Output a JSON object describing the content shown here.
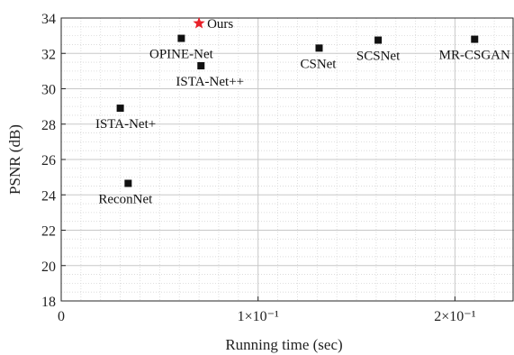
{
  "chart_data": {
    "type": "scatter",
    "xlabel": "Running time (sec)",
    "ylabel": "PSNR (dB)",
    "xlim": [
      0,
      0.23
    ],
    "ylim": [
      18,
      34
    ],
    "x_scale": "linear",
    "grid": true,
    "minor_grid": true,
    "xticks": [
      {
        "value": 0,
        "label": "0"
      },
      {
        "value": 0.1,
        "label": "1×10⁻¹"
      },
      {
        "value": 0.2,
        "label": "2×10⁻¹"
      }
    ],
    "yticks": [
      18,
      20,
      22,
      24,
      26,
      28,
      30,
      32,
      34
    ],
    "points": [
      {
        "label": "Ours",
        "x": 0.07,
        "y": 33.7,
        "marker": "star",
        "color": "#e8212a"
      },
      {
        "label": "OPINE-Net",
        "x": 0.061,
        "y": 32.85,
        "marker": "square",
        "color": "#111111"
      },
      {
        "label": "ISTA-Net++",
        "x": 0.071,
        "y": 31.3,
        "marker": "square",
        "color": "#111111"
      },
      {
        "label": "CSNet",
        "x": 0.131,
        "y": 32.3,
        "marker": "square",
        "color": "#111111"
      },
      {
        "label": "SCSNet",
        "x": 0.161,
        "y": 32.75,
        "marker": "square",
        "color": "#111111"
      },
      {
        "label": "MR-CSGAN",
        "x": 0.21,
        "y": 32.8,
        "marker": "square",
        "color": "#111111"
      },
      {
        "label": "ISTA-Net+",
        "x": 0.03,
        "y": 28.9,
        "marker": "square",
        "color": "#111111"
      },
      {
        "label": "ReconNet",
        "x": 0.034,
        "y": 24.65,
        "marker": "square",
        "color": "#111111"
      }
    ]
  }
}
